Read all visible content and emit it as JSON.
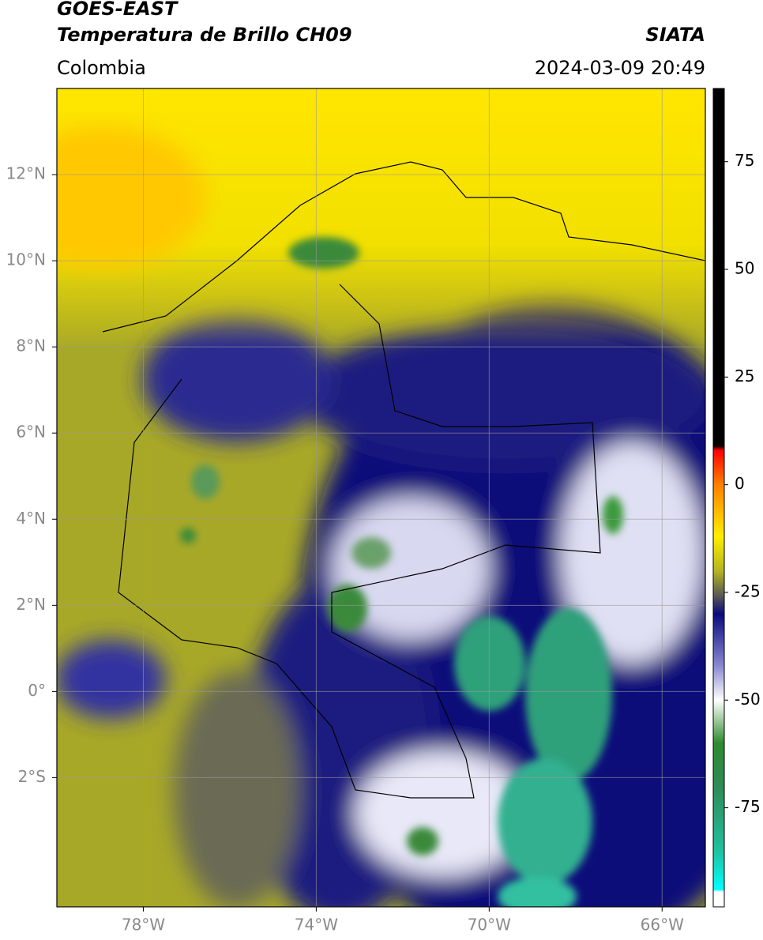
{
  "header": {
    "satellite": "GOES-EAST",
    "product": "Temperatura de Brillo CH09",
    "source": "SIATA",
    "region": "Colombia",
    "datetime": "2024-03-09 20:49"
  },
  "map": {
    "xlim": [
      -80,
      -65
    ],
    "ylim": [
      -5,
      14
    ],
    "xticks": [
      {
        "value": -78,
        "label": "78°W"
      },
      {
        "value": -74,
        "label": "74°W"
      },
      {
        "value": -70,
        "label": "70°W"
      },
      {
        "value": -66,
        "label": "66°W"
      }
    ],
    "yticks": [
      {
        "value": 12,
        "label": "12°N"
      },
      {
        "value": 10,
        "label": "10°N"
      },
      {
        "value": 8,
        "label": "8°N"
      },
      {
        "value": 6,
        "label": "6°N"
      },
      {
        "value": 4,
        "label": "4°N"
      },
      {
        "value": 2,
        "label": "2°N"
      },
      {
        "value": 0,
        "label": "0°"
      },
      {
        "value": -2,
        "label": "2°S"
      }
    ],
    "grid": true
  },
  "colorbar": {
    "lim": [
      -98,
      92
    ],
    "ticks": [
      75,
      50,
      25,
      0,
      -25,
      -50,
      -75
    ],
    "stops": [
      {
        "value": 92,
        "color": "#000000"
      },
      {
        "value": 9,
        "color": "#000000"
      },
      {
        "value": 8,
        "color": "#ff0000"
      },
      {
        "value": 0,
        "color": "#ff8000"
      },
      {
        "value": -12,
        "color": "#ffee00"
      },
      {
        "value": -20,
        "color": "#b5b520"
      },
      {
        "value": -26,
        "color": "#555555"
      },
      {
        "value": -30,
        "color": "#0a0a80"
      },
      {
        "value": -42,
        "color": "#8888d0"
      },
      {
        "value": -50,
        "color": "#ffffff"
      },
      {
        "value": -60,
        "color": "#2e8b2e"
      },
      {
        "value": -70,
        "color": "#2e8b57"
      },
      {
        "value": -85,
        "color": "#20c0a0"
      },
      {
        "value": -94,
        "color": "#00ffff"
      },
      {
        "value": -94.5,
        "color": "#ffffff"
      },
      {
        "value": -98,
        "color": "#ffffff"
      }
    ]
  }
}
